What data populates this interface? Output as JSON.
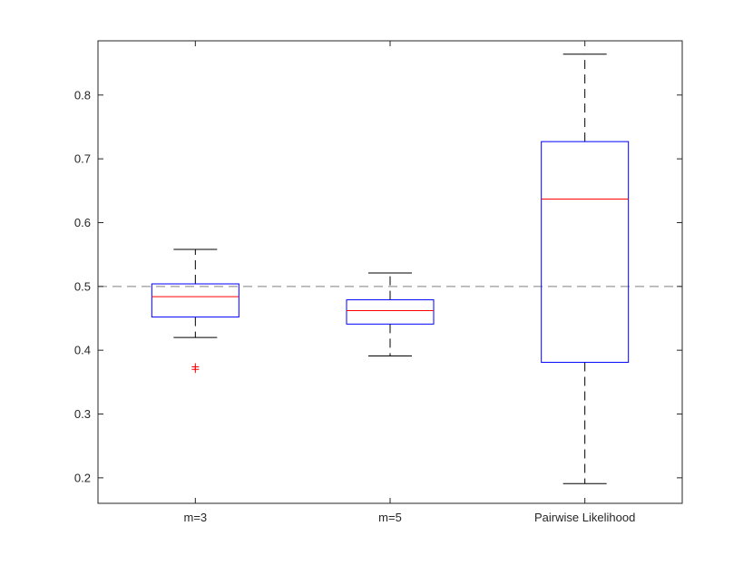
{
  "chart_data": {
    "type": "boxplot",
    "categories": [
      "m=3",
      "m=5",
      "Pairwise Likelihood"
    ],
    "boxes": [
      {
        "category": "m=3",
        "whisker_low": 0.42,
        "q1": 0.452,
        "median": 0.484,
        "q3": 0.504,
        "whisker_high": 0.558,
        "outliers": [
          0.37,
          0.374
        ]
      },
      {
        "category": "m=5",
        "whisker_low": 0.391,
        "q1": 0.441,
        "median": 0.462,
        "q3": 0.479,
        "whisker_high": 0.521,
        "outliers": []
      },
      {
        "category": "Pairwise Likelihood",
        "whisker_low": 0.191,
        "q1": 0.381,
        "median": 0.637,
        "q3": 0.727,
        "whisker_high": 0.864,
        "outliers": []
      }
    ],
    "reference_line": 0.5,
    "ylim": [
      0.16,
      0.885
    ],
    "yticks": [
      0.2,
      0.3,
      0.4,
      0.5,
      0.6,
      0.7,
      0.8
    ],
    "ytick_labels": [
      "0.2",
      "0.3",
      "0.4",
      "0.5",
      "0.6",
      "0.7",
      "0.8"
    ],
    "grid": false,
    "colors": {
      "box": "#0000ff",
      "median": "#ff0000",
      "whisker": "#000000",
      "outlier": "#ff0000",
      "reference": "#808080",
      "axis": "#262626"
    }
  }
}
